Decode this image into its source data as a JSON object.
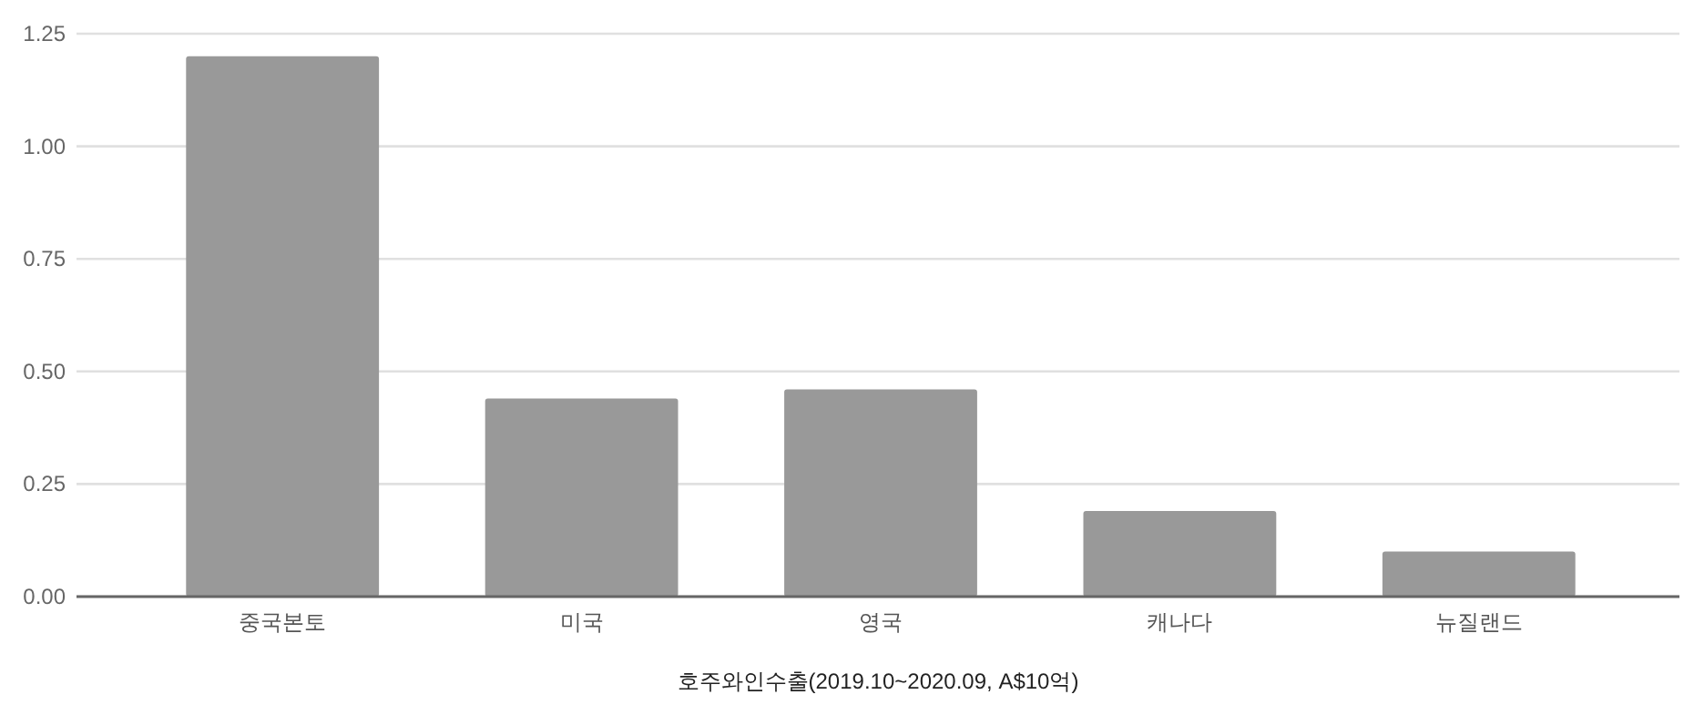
{
  "chart_data": {
    "type": "bar",
    "xlabel": "호주와인수출(2019.10~2020.09, A$10억)",
    "categories": [
      "중국본토",
      "미국",
      "영국",
      "캐나다",
      "뉴질랜드"
    ],
    "values": [
      1.2,
      0.44,
      0.46,
      0.19,
      0.1
    ],
    "color": "#999999",
    "ylim": [
      0,
      1.25
    ],
    "yticks": [
      {
        "value": 0,
        "label": "0.00"
      },
      {
        "value": 0.25,
        "label": "0.25"
      },
      {
        "value": 0.5,
        "label": "0.50"
      },
      {
        "value": 0.75,
        "label": "0.75"
      },
      {
        "value": 1,
        "label": "1.00"
      },
      {
        "value": 1.25,
        "label": "1.25"
      }
    ],
    "grid": "y"
  }
}
